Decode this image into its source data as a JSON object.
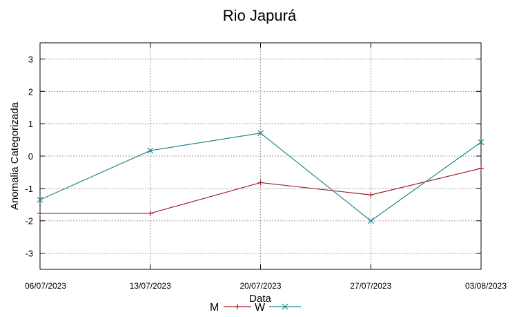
{
  "chart_data": {
    "type": "line",
    "title": "Rio Japurá",
    "xlabel": "Data",
    "ylabel": "Anomalia Categorizada",
    "categories": [
      "06/07/2023",
      "13/07/2023",
      "20/07/2023",
      "27/07/2023",
      "03/08/2023"
    ],
    "ylim": [
      -3.5,
      3.5
    ],
    "yticks": [
      "3",
      "2",
      "1",
      "0",
      "-1",
      "-2",
      "-3"
    ],
    "grid": true,
    "legend_position": "bottom-center",
    "series": [
      {
        "name": "M",
        "color": "#a01c2a",
        "marker": "plus",
        "values": [
          -1.77,
          -1.77,
          -0.82,
          -1.2,
          -0.38
        ]
      },
      {
        "name": "W",
        "color": "#20878c",
        "marker": "x",
        "values": [
          -1.35,
          0.17,
          0.71,
          -2.0,
          0.43
        ]
      }
    ]
  }
}
